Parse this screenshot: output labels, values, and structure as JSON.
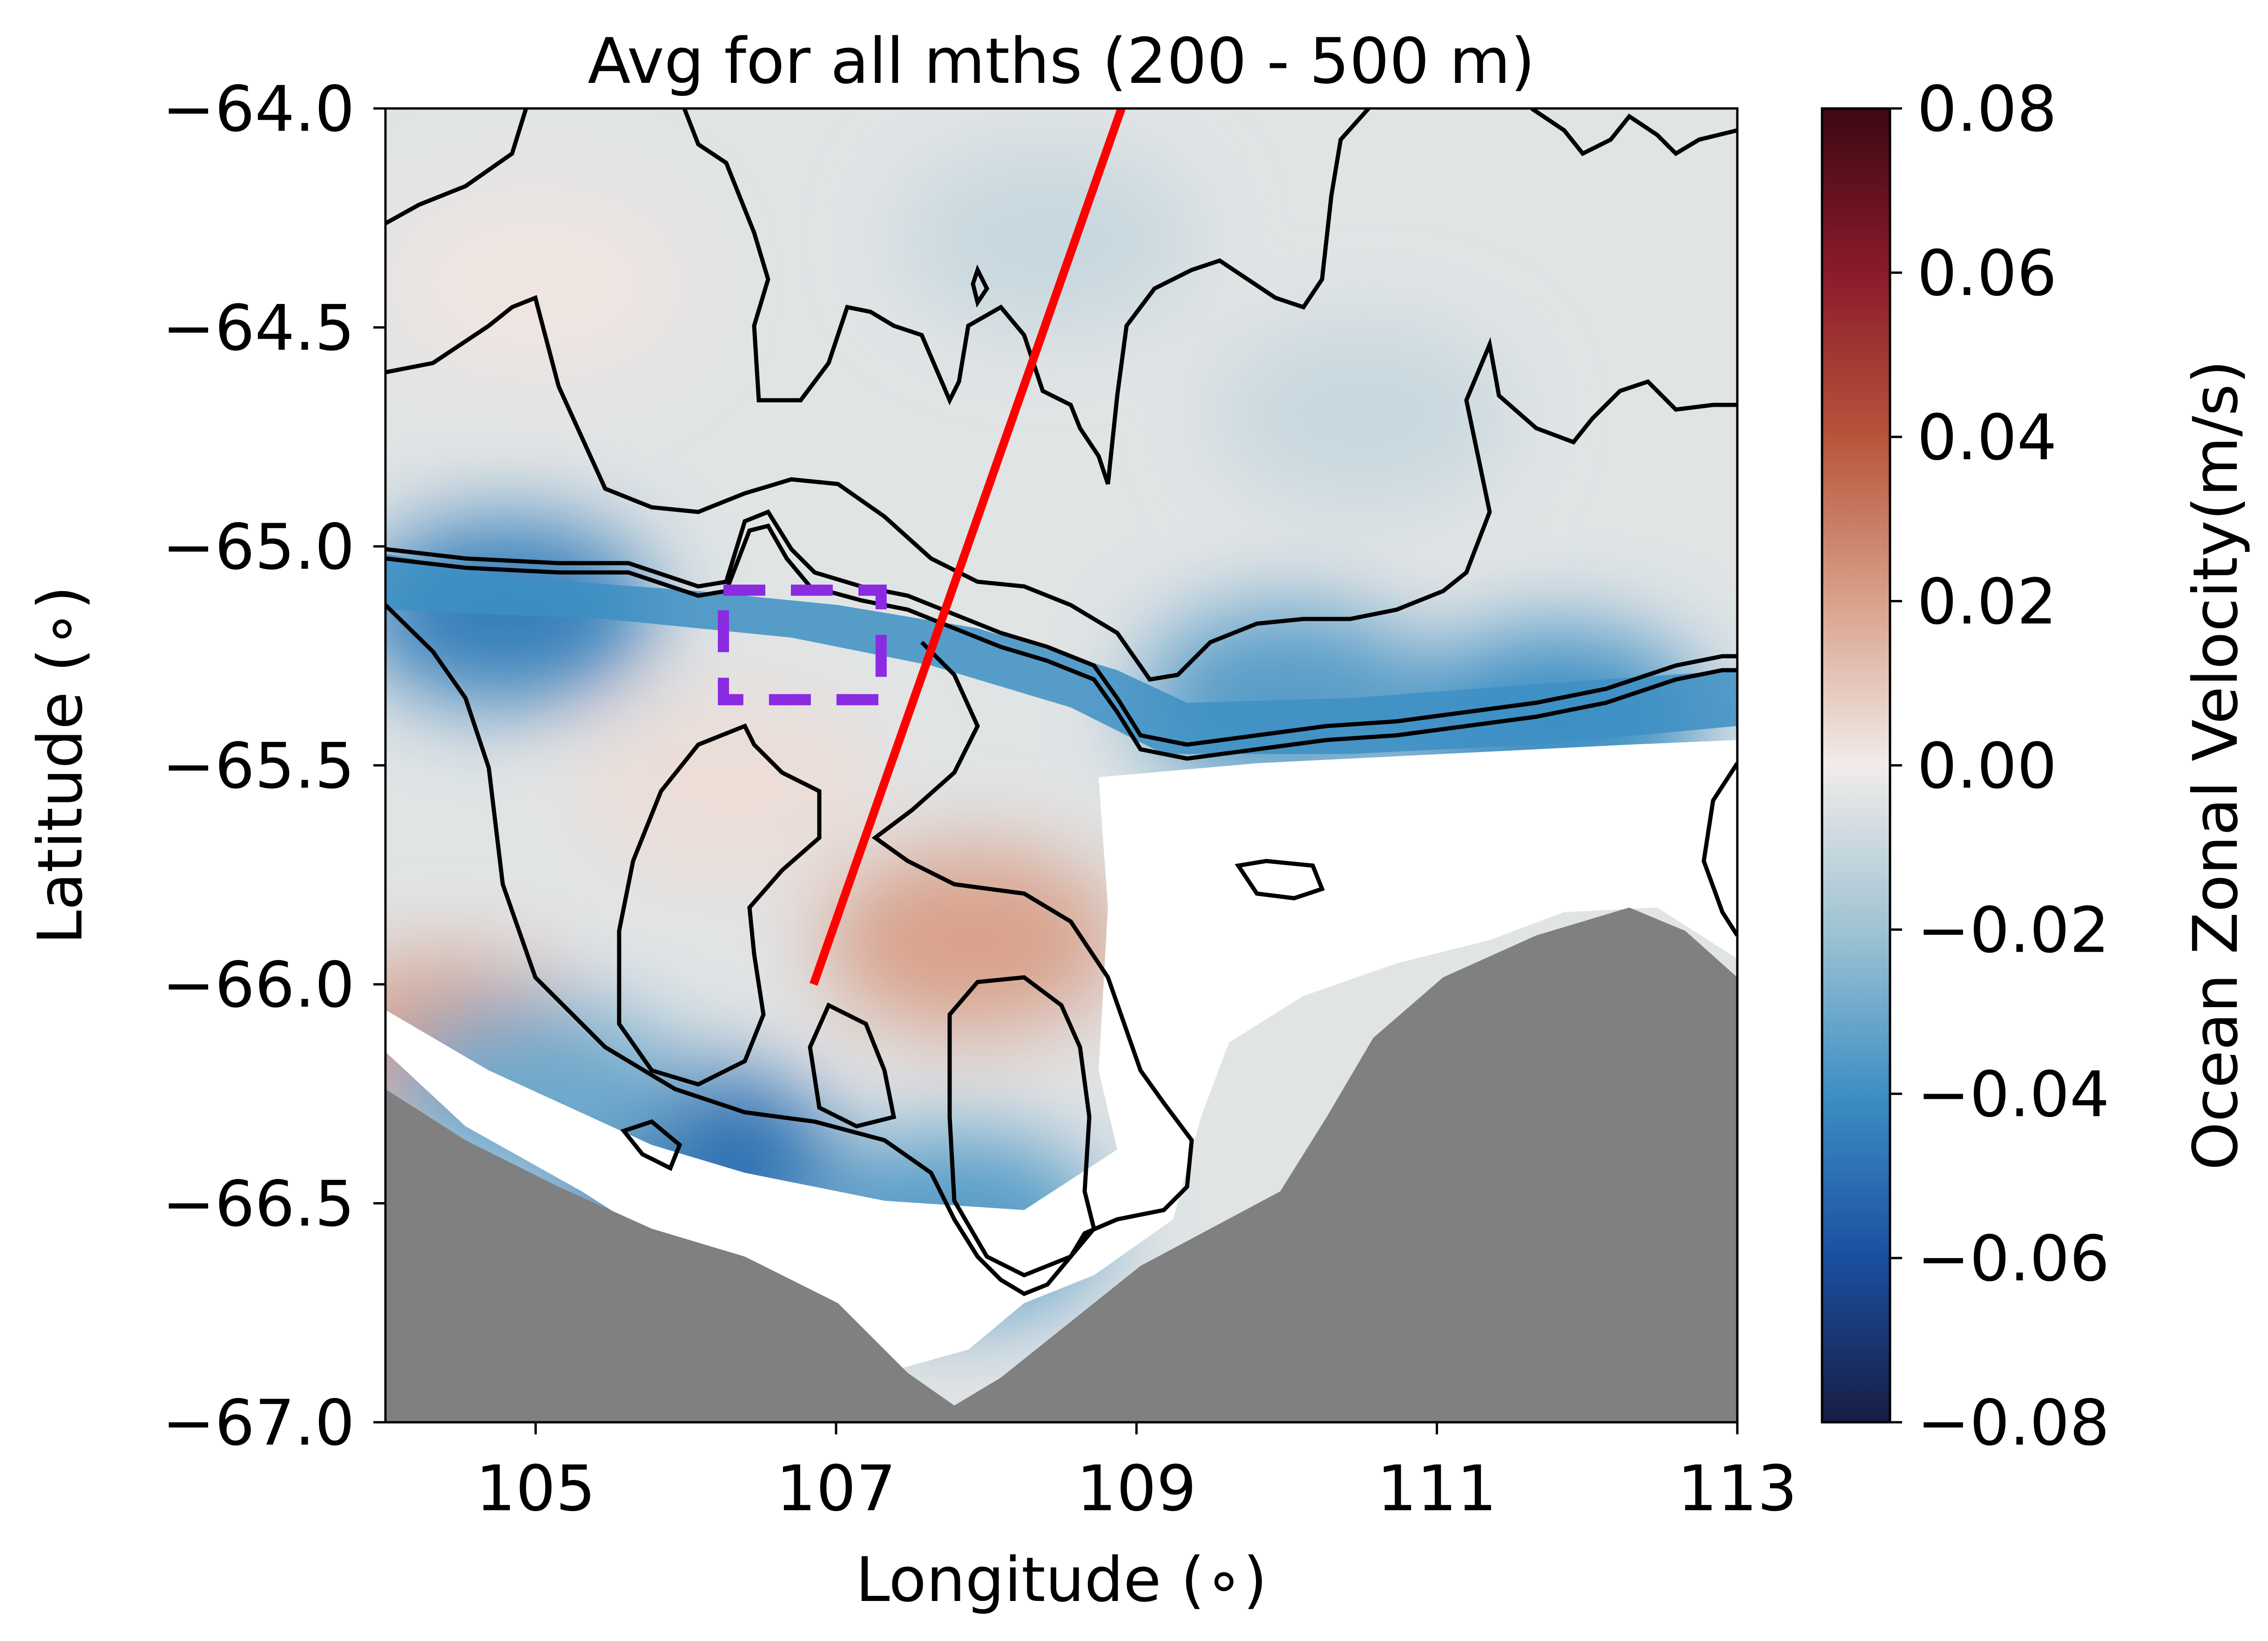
{
  "chart_data": {
    "type": "heatmap",
    "title": "Avg for all mths (200 - 500 m)",
    "xlabel": "Longitude (∘)",
    "ylabel": "Latitude (∘)",
    "xlim": [
      104,
      113
    ],
    "ylim": [
      -67.0,
      -64.0
    ],
    "x_ticks": [
      105,
      107,
      109,
      111,
      113
    ],
    "x_tick_labels": [
      "105",
      "107",
      "109",
      "111",
      "113"
    ],
    "y_ticks": [
      -64.0,
      -64.5,
      -65.0,
      -65.5,
      -66.0,
      -66.5,
      -67.0
    ],
    "y_tick_labels": [
      "−64.0",
      "−64.5",
      "−65.0",
      "−65.5",
      "−66.0",
      "−66.5",
      "−67.0"
    ],
    "colorbar": {
      "label": "Ocean Zonal Velocity(m/s)",
      "range": [
        -0.08,
        0.08
      ],
      "ticks": [
        0.08,
        0.06,
        0.04,
        0.02,
        0.0,
        -0.02,
        -0.04,
        -0.06,
        -0.08
      ],
      "tick_labels": [
        "0.08",
        "0.06",
        "0.04",
        "0.02",
        "0.00",
        "−0.02",
        "−0.04",
        "−0.06",
        "−0.08"
      ],
      "colormap": "balance",
      "colors": [
        "#181c43",
        "#1a4fa0",
        "#3d8fc4",
        "#9fc3d3",
        "#f1ecea",
        "#d9a18b",
        "#b8543b",
        "#8b1a2b",
        "#3c0912"
      ]
    },
    "land_color": "#808080",
    "contour_color": "#000000",
    "transect_line": {
      "color": "#ff0000",
      "start": [
        106.85,
        -66.0
      ],
      "end": [
        108.9,
        -64.0
      ]
    },
    "box": {
      "color": "#8a2be2",
      "style": "dashed",
      "lon": [
        106.25,
        107.3
      ],
      "lat": [
        -65.35,
        -65.1
      ]
    },
    "fields": {
      "background": -0.004,
      "features": [
        {
          "lon": 107.9,
          "lat": -65.9,
          "value": 0.02
        },
        {
          "lon": 106.3,
          "lat": -65.55,
          "value": 0.004
        },
        {
          "lon": 105.0,
          "lat": -64.4,
          "value": 0.002
        },
        {
          "lon": 104.4,
          "lat": -66.15,
          "value": 0.02
        },
        {
          "lon": 108.4,
          "lat": -64.3,
          "value": -0.01
        },
        {
          "lon": 110.5,
          "lat": -64.7,
          "value": -0.01
        },
        {
          "lon": 104.8,
          "lat": -65.15,
          "value": -0.045
        },
        {
          "lon": 106.0,
          "lat": -66.4,
          "value": -0.05
        },
        {
          "lon": 105.0,
          "lat": -66.25,
          "value": -0.03
        },
        {
          "lon": 107.8,
          "lat": -66.55,
          "value": -0.035
        },
        {
          "lon": 110.0,
          "lat": -65.35,
          "value": -0.035
        },
        {
          "lon": 111.8,
          "lat": -65.4,
          "value": -0.04
        }
      ]
    }
  }
}
